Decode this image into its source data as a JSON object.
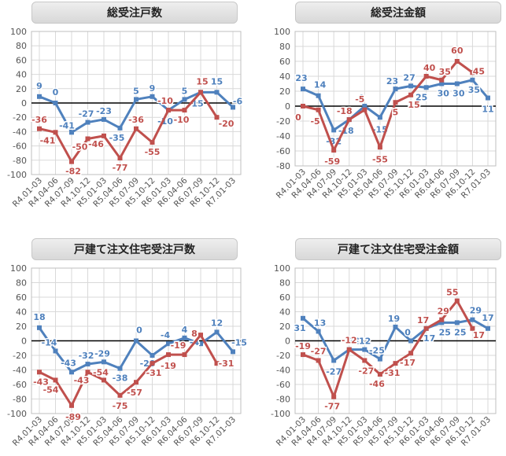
{
  "colors": {
    "blue": "#4f81bd",
    "red": "#c0504d",
    "grid": "#d9d9d9",
    "axis": "#000000",
    "tick": "#555555"
  },
  "chart_data": [
    {
      "type": "line",
      "title": "総受注戸数",
      "categories": [
        "R4.01-03",
        "R4.04-06",
        "R4.07-09",
        "R4.10-12",
        "R5.01-03",
        "R5.04-06",
        "R5.07-09",
        "R5.10-12",
        "R6.01-03",
        "R6.04-06",
        "R6.07-09",
        "R6.10-12",
        "R7.01-03"
      ],
      "ylim": [
        -100,
        100
      ],
      "ytick_step": 20,
      "grid": true,
      "series": [
        {
          "color": "blue",
          "values": [
            9,
            0,
            -41,
            -27,
            -23,
            -35,
            5,
            9,
            -10,
            5,
            15,
            15,
            -6
          ],
          "labels": [
            "9",
            "0",
            "-41",
            "-27",
            "-23",
            "-35",
            "5",
            "9",
            "-10",
            "5",
            "15",
            "15",
            "-6"
          ]
        },
        {
          "color": "red",
          "values": [
            -36,
            -41,
            -82,
            -50,
            -46,
            -77,
            -36,
            -55,
            -10,
            -10,
            15,
            -20,
            null
          ],
          "labels": [
            "-36",
            "-41",
            "-82",
            "-50",
            "-46",
            "-77",
            "-36",
            "-55",
            "-10",
            "-10",
            "15",
            "-20",
            ""
          ]
        }
      ]
    },
    {
      "type": "line",
      "title": "総受注金額",
      "categories": [
        "R4.01-03",
        "R4.04-06",
        "R4.07-09",
        "R4.10-12",
        "R5.01-03",
        "R5.04-06",
        "R5.07-09",
        "R5.10-12",
        "R6.01-03",
        "R6.04-06",
        "R6.07-09",
        "R6.10-12",
        "R7.01-03"
      ],
      "ylim": [
        -80,
        100
      ],
      "ytick_step": 20,
      "grid": true,
      "series": [
        {
          "color": "blue",
          "values": [
            23,
            14,
            -32,
            -18,
            0,
            -15,
            23,
            27,
            25,
            30,
            30,
            35,
            11
          ],
          "labels": [
            "23",
            "14",
            "-32",
            "-18",
            "0",
            "-15",
            "23",
            "27",
            "25",
            "30",
            "30",
            "35",
            "11"
          ]
        },
        {
          "color": "red",
          "values": [
            0,
            -5,
            -59,
            -18,
            -5,
            -55,
            5,
            15,
            40,
            35,
            60,
            45,
            null
          ],
          "labels": [
            "0",
            "-5",
            "-59",
            "-18",
            "-5",
            "-55",
            "5",
            "15",
            "40",
            "35",
            "60",
            "45",
            ""
          ]
        }
      ]
    },
    {
      "type": "line",
      "title": "戸建て注文住宅受注戸数",
      "categories": [
        "R4.01-03",
        "R4.04-06",
        "R4.07-09",
        "R4.10-12",
        "R5.01-03",
        "R5.04-06",
        "R5.07-09",
        "R5.10-12",
        "R6.01-03",
        "R6.04-06",
        "R6.07-09",
        "R6.10-12",
        "R7.01-03"
      ],
      "ylim": [
        -100,
        100
      ],
      "ytick_step": 20,
      "grid": true,
      "series": [
        {
          "color": "blue",
          "values": [
            18,
            -14,
            -43,
            -32,
            -29,
            -38,
            0,
            -20,
            -4,
            4,
            -4,
            12,
            -15
          ],
          "labels": [
            "18",
            "-14",
            "-43",
            "-32",
            "-29",
            "-38",
            "0",
            "-20",
            "-4",
            "4",
            "-4",
            "12",
            "-15"
          ]
        },
        {
          "color": "red",
          "values": [
            -43,
            -54,
            -89,
            -43,
            -54,
            -75,
            -57,
            -31,
            -19,
            -19,
            8,
            -31,
            null
          ],
          "labels": [
            "-43",
            "-54",
            "-89",
            "-43",
            "-54",
            "-75",
            "-57",
            "-31",
            "-19",
            "-19",
            "8",
            "-31",
            ""
          ]
        }
      ]
    },
    {
      "type": "line",
      "title": "戸建て注文住宅受注金額",
      "categories": [
        "R4.01-03",
        "R4.04-06",
        "R4.07-09",
        "R4.10-12",
        "R5.01-03",
        "R5.04-06",
        "R5.07-09",
        "R5.10-12",
        "R6.01-03",
        "R6.04-06",
        "R6.07-09",
        "R6.10-12",
        "R7.01-03"
      ],
      "ylim": [
        -100,
        100
      ],
      "ytick_step": 20,
      "grid": true,
      "series": [
        {
          "color": "blue",
          "values": [
            31,
            13,
            -27,
            -12,
            -12,
            -25,
            19,
            0,
            17,
            25,
            25,
            29,
            17
          ],
          "labels": [
            "31",
            "13",
            "-27",
            "-12",
            "-12",
            "-25",
            "19",
            "0",
            "17",
            "25",
            "25",
            "29",
            "17"
          ]
        },
        {
          "color": "red",
          "values": [
            -19,
            -27,
            -77,
            -12,
            -27,
            -46,
            -31,
            -17,
            17,
            29,
            55,
            17,
            null
          ],
          "labels": [
            "-19",
            "-27",
            "-77",
            "-12",
            "-27",
            "-46",
            "-31",
            "-17",
            "17",
            "29",
            "55",
            "17",
            ""
          ]
        }
      ]
    }
  ]
}
